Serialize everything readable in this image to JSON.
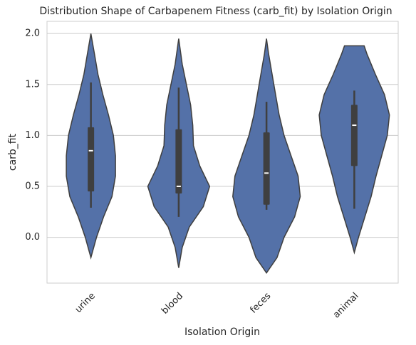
{
  "chart_data": {
    "type": "violin",
    "title": "Distribution Shape of Carbapenem Fitness (carb_fit) by Isolation Origin",
    "x_label": "Isolation Origin",
    "y_label": "carb_fit",
    "categories": [
      "urine",
      "blood",
      "feces",
      "animal"
    ],
    "color": "#5471a8",
    "edge_color": "#3f3f3f",
    "box_color": "#3f3f3f",
    "median_color": "#ffffff",
    "ylim": [
      -0.45,
      2.12
    ],
    "yticks": [
      {
        "value": 0,
        "label": "0.0"
      },
      {
        "value": 0.5,
        "label": "0.5"
      },
      {
        "value": 1,
        "label": "1.0"
      },
      {
        "value": 1.5,
        "label": "1.5"
      },
      {
        "value": 2,
        "label": "2.0"
      }
    ],
    "grid": true,
    "violins": [
      {
        "y": [
          -0.2,
          0,
          0.2,
          0.4,
          0.6,
          0.8,
          1.0,
          1.2,
          1.4,
          1.6,
          1.8,
          2.0
        ],
        "widths": [
          0,
          0.16,
          0.36,
          0.6,
          0.7,
          0.7,
          0.64,
          0.5,
          0.34,
          0.2,
          0.1,
          0
        ],
        "whisker_low": 0.29,
        "q1": 0.45,
        "median": 0.85,
        "q3": 1.08,
        "whisker_high": 1.52
      },
      {
        "y": [
          -0.3,
          -0.1,
          0.1,
          0.3,
          0.5,
          0.7,
          0.9,
          1.1,
          1.3,
          1.5,
          1.7,
          1.95
        ],
        "widths": [
          0,
          0.1,
          0.3,
          0.7,
          0.88,
          0.6,
          0.42,
          0.4,
          0.34,
          0.22,
          0.1,
          0
        ],
        "whisker_low": 0.2,
        "q1": 0.43,
        "median": 0.5,
        "q3": 1.06,
        "whisker_high": 1.47
      },
      {
        "y": [
          -0.35,
          -0.2,
          0,
          0.2,
          0.4,
          0.6,
          0.8,
          1.0,
          1.2,
          1.4,
          1.6,
          1.8,
          1.95
        ],
        "widths": [
          0,
          0.3,
          0.5,
          0.8,
          0.96,
          0.9,
          0.7,
          0.5,
          0.36,
          0.26,
          0.16,
          0.06,
          0
        ],
        "whisker_low": 0.27,
        "q1": 0.32,
        "median": 0.63,
        "q3": 1.03,
        "whisker_high": 1.33
      },
      {
        "y": [
          -0.15,
          0,
          0.2,
          0.4,
          0.6,
          0.8,
          1.0,
          1.2,
          1.4,
          1.6,
          1.8,
          1.88
        ],
        "widths": [
          0,
          0.12,
          0.3,
          0.48,
          0.62,
          0.78,
          0.94,
          1.0,
          0.86,
          0.6,
          0.36,
          0.28
        ],
        "whisker_low": 0.28,
        "q1": 0.7,
        "median": 1.1,
        "q3": 1.3,
        "whisker_high": 1.44
      }
    ]
  }
}
